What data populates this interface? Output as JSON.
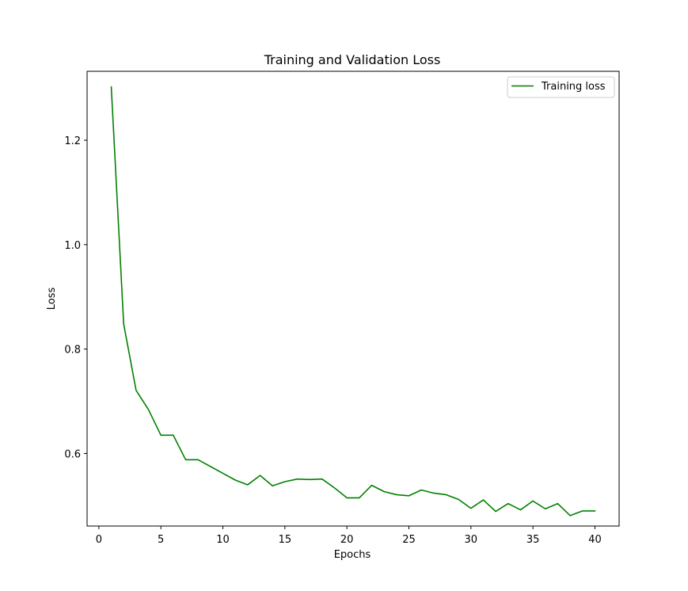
{
  "chart_data": {
    "type": "line",
    "title": "Training and Validation Loss",
    "xlabel": "Epochs",
    "ylabel": "Loss",
    "xlim": [
      -0.95,
      41.95
    ],
    "ylim": [
      0.461,
      1.332
    ],
    "x_ticks": [
      0,
      5,
      10,
      15,
      20,
      25,
      30,
      35,
      40
    ],
    "x_tick_labels": [
      "0",
      "5",
      "10",
      "15",
      "20",
      "25",
      "30",
      "35",
      "40"
    ],
    "y_ticks": [
      0.6,
      0.8,
      1.0,
      1.2
    ],
    "y_tick_labels": [
      "0.6",
      "0.8",
      "1.0",
      "1.2"
    ],
    "grid": false,
    "legend": {
      "position": "top-right",
      "entries": [
        "Training loss"
      ]
    },
    "series": [
      {
        "name": "Training loss",
        "color": "#008000",
        "x": [
          1,
          2,
          3,
          4,
          5,
          6,
          7,
          8,
          9,
          10,
          11,
          12,
          13,
          14,
          15,
          16,
          17,
          18,
          19,
          20,
          21,
          22,
          23,
          24,
          25,
          26,
          27,
          28,
          29,
          30,
          31,
          32,
          33,
          34,
          35,
          36,
          37,
          38,
          39,
          40
        ],
        "y": [
          1.302,
          0.848,
          0.721,
          0.684,
          0.635,
          0.635,
          0.588,
          0.588,
          0.575,
          0.562,
          0.549,
          0.54,
          0.558,
          0.538,
          0.546,
          0.551,
          0.55,
          0.551,
          0.534,
          0.515,
          0.515,
          0.539,
          0.527,
          0.521,
          0.519,
          0.53,
          0.524,
          0.521,
          0.512,
          0.495,
          0.511,
          0.489,
          0.504,
          0.492,
          0.509,
          0.494,
          0.504,
          0.481,
          0.49,
          0.49
        ]
      }
    ]
  }
}
